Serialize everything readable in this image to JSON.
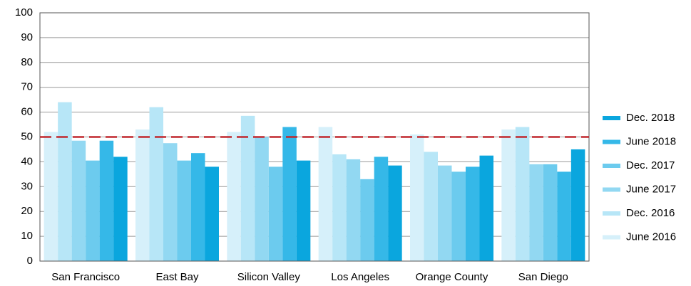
{
  "chart_data": {
    "type": "bar",
    "categories": [
      "San Francisco",
      "East Bay",
      "Silicon Valley",
      "Los Angeles",
      "Orange County",
      "San Diego"
    ],
    "series": [
      {
        "name": "June 2016",
        "color": "#d6f0fa",
        "values": [
          52,
          53,
          52,
          54,
          51,
          53
        ]
      },
      {
        "name": "Dec. 2016",
        "color": "#b7e6f7",
        "values": [
          64,
          62,
          58.5,
          43,
          44,
          54
        ]
      },
      {
        "name": "June 2017",
        "color": "#92d8f2",
        "values": [
          48.5,
          47.5,
          50,
          41,
          38.5,
          39
        ]
      },
      {
        "name": "Dec. 2017",
        "color": "#6ccbee",
        "values": [
          40.5,
          40.5,
          38,
          33,
          36,
          39
        ]
      },
      {
        "name": "June 2018",
        "color": "#35b8e8",
        "values": [
          48.5,
          43.5,
          54,
          42,
          38,
          36
        ]
      },
      {
        "name": "Dec. 2018",
        "color": "#0aa6de",
        "values": [
          42,
          38,
          40.5,
          38.5,
          42.5,
          45
        ]
      }
    ],
    "ylim": [
      0,
      100
    ],
    "yticks": [
      0,
      10,
      20,
      30,
      40,
      50,
      60,
      70,
      80,
      90,
      100
    ],
    "grid": true,
    "reference_line": {
      "value": 50,
      "color": "#c0272d",
      "dashed": true
    },
    "legend": "right"
  }
}
